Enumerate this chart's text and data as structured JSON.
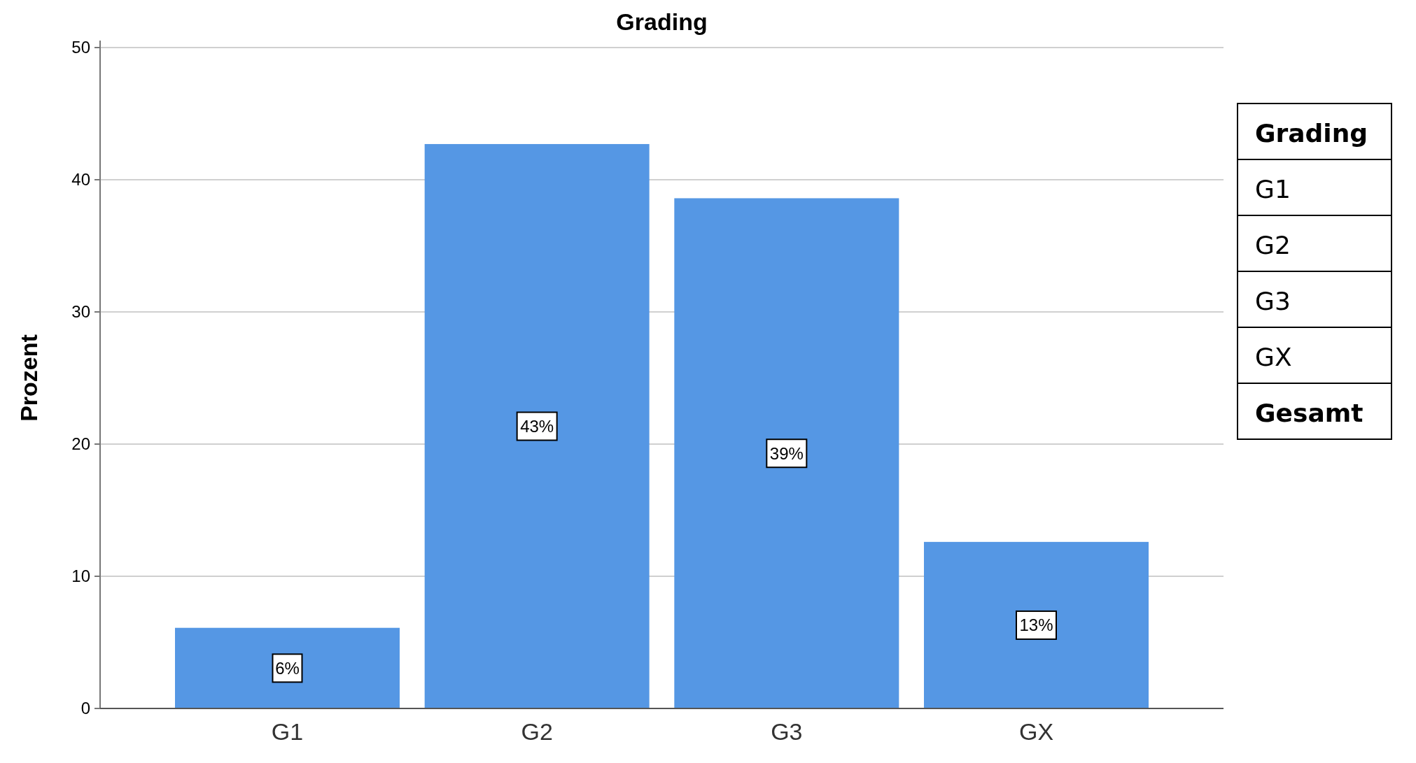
{
  "chart_data": {
    "type": "bar",
    "title": "Grading",
    "ylabel": "Prozent",
    "categories": [
      "G1",
      "G2",
      "G3",
      "GX"
    ],
    "values": [
      6.1,
      42.7,
      38.6,
      12.6
    ],
    "value_labels": [
      "6%",
      "43%",
      "39%",
      "13%"
    ],
    "color": "#5597e4",
    "ylim": [
      0,
      50
    ],
    "yticks": [
      0,
      10,
      20,
      30,
      40,
      50
    ],
    "grid": "y",
    "annotations": [
      "Grading",
      "G1",
      "G2",
      "G3",
      "GX",
      "Gesamt"
    ]
  }
}
